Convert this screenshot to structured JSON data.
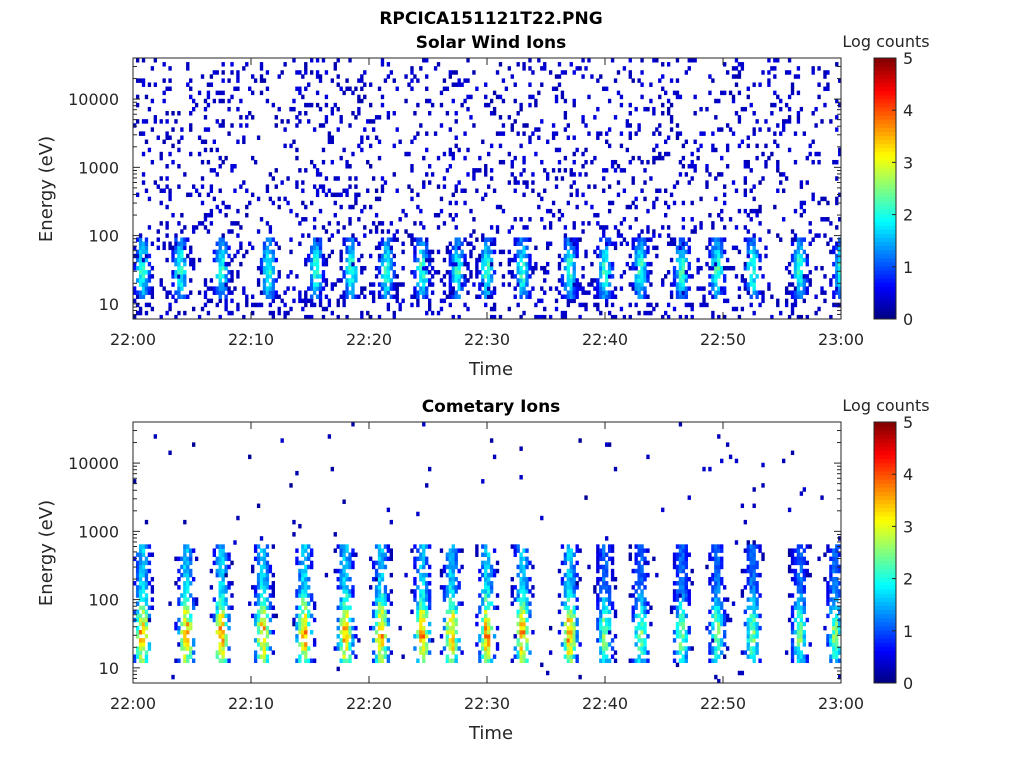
{
  "figure": {
    "title": "RPCICA151121T22.PNG"
  },
  "colormap": {
    "name": "jet",
    "stops": [
      "#00008f",
      "#0000ff",
      "#00ffff",
      "#ffff00",
      "#ff0000",
      "#800000"
    ]
  },
  "chart_data": [
    {
      "type": "heatmap",
      "title": "Solar Wind Ions",
      "xlabel": "Time",
      "ylabel": "Energy (eV)",
      "xlim": [
        "22:00",
        "23:00"
      ],
      "x_ticks": [
        "22:00",
        "22:10",
        "22:20",
        "22:30",
        "22:40",
        "22:50",
        "23:00"
      ],
      "ylim": [
        6,
        40000
      ],
      "yscale": "log",
      "y_ticks": [
        "10",
        "100",
        "1000",
        "10000"
      ],
      "y_tick_values": [
        10,
        100,
        1000,
        10000
      ],
      "colorbar": {
        "label": "Log counts",
        "range": [
          0,
          5
        ],
        "ticks": [
          "0",
          "1",
          "2",
          "3",
          "4",
          "5"
        ]
      },
      "description_hint": "Sparse low-count (log ~0-0.3) scatter across 10 eV-30 keV; periodic bursts roughly every 3 minutes at 15-100 eV with log counts up to ~2.3",
      "burst_minutes": [
        0.8,
        4.0,
        7.5,
        11.5,
        15.5,
        18.5,
        21.5,
        24.5,
        27.5,
        30.0,
        33.0,
        37.0,
        40.0,
        43.0,
        46.5,
        49.5,
        52.5,
        56.5,
        60.0
      ],
      "burst_peak_log_counts": 2.3,
      "background_log_counts": 0.2
    },
    {
      "type": "heatmap",
      "title": "Cometary Ions",
      "xlabel": "Time",
      "ylabel": "Energy (eV)",
      "xlim": [
        "22:00",
        "23:00"
      ],
      "x_ticks": [
        "22:00",
        "22:10",
        "22:20",
        "22:30",
        "22:40",
        "22:50",
        "23:00"
      ],
      "ylim": [
        6,
        40000
      ],
      "yscale": "log",
      "y_ticks": [
        "10",
        "100",
        "1000",
        "10000"
      ],
      "y_tick_values": [
        10,
        100,
        1000,
        10000
      ],
      "colorbar": {
        "label": "Log counts",
        "range": [
          0,
          5
        ],
        "ticks": [
          "0",
          "1",
          "2",
          "3",
          "4",
          "5"
        ]
      },
      "description_hint": "Periodic bursts roughly every 3 minutes, strongest 20-60 eV (log counts ~3.5-4), tailing up to ~600 eV; weaker bursts after 22:38",
      "burst_minutes": [
        0.8,
        4.5,
        7.5,
        11.0,
        14.5,
        18.0,
        21.0,
        24.5,
        27.0,
        30.0,
        33.0,
        37.0,
        40.0,
        43.0,
        46.5,
        49.5,
        52.5,
        56.5,
        59.5
      ],
      "burst_peak_log_counts": 3.8,
      "background_log_counts": 0.1
    }
  ]
}
